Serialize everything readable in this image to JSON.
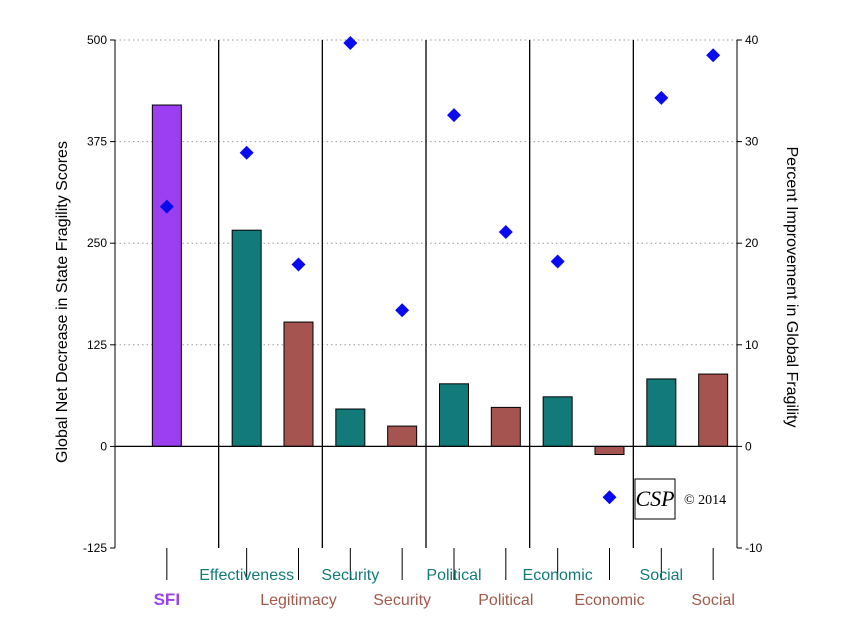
{
  "chart_data": {
    "type": "bar",
    "ylabel": "Global Net Decrease in State Fragility Scores",
    "y2label": "Percent Improvement in Global Fragility",
    "ylim": [
      -125,
      500
    ],
    "y2lim": [
      -10,
      40
    ],
    "yticks": [
      500,
      375,
      250,
      125,
      0,
      -125
    ],
    "y2ticks": [
      40,
      30,
      20,
      10,
      0,
      -10
    ],
    "grid": "horizontal dotted at major ticks",
    "categories": [
      "SFI",
      "Effectiveness",
      "Legitimacy",
      "Effectiveness",
      "Legitimacy",
      "Effectiveness",
      "Legitimacy",
      "Effectiveness",
      "Legitimacy",
      "Effectiveness",
      "Legitimacy"
    ],
    "groups": [
      {
        "label": "SFI",
        "bars": [
          {
            "label": "SFI",
            "value": 420,
            "pct": 23.6,
            "color": "#9b3ff0"
          }
        ]
      },
      {
        "label": "",
        "bars": [
          {
            "label": "Effectiveness",
            "value": 266,
            "pct": 28.9,
            "color": "#137a7a"
          },
          {
            "label": "Legitimacy",
            "value": 153,
            "pct": 17.9,
            "color": "#a6544f"
          }
        ]
      },
      {
        "label": "",
        "bars": [
          {
            "label": "Security",
            "value": 46,
            "pct": 39.7,
            "color": "#137a7a"
          },
          {
            "label": "Security",
            "value": 25,
            "pct": 13.4,
            "color": "#a6544f"
          }
        ]
      },
      {
        "label": "",
        "bars": [
          {
            "label": "Political",
            "value": 77,
            "pct": 32.6,
            "color": "#137a7a"
          },
          {
            "label": "Political",
            "value": 48,
            "pct": 21.1,
            "color": "#a6544f"
          }
        ]
      },
      {
        "label": "",
        "bars": [
          {
            "label": "Economic",
            "value": 61,
            "pct": 18.2,
            "color": "#137a7a"
          },
          {
            "label": "Economic",
            "value": -10,
            "pct": -5.0,
            "color": "#a6544f"
          }
        ]
      },
      {
        "label": "",
        "bars": [
          {
            "label": "Social",
            "value": 83,
            "pct": 34.3,
            "color": "#137a7a"
          },
          {
            "label": "Social",
            "value": 89,
            "pct": 38.5,
            "color": "#a6544f"
          }
        ]
      }
    ],
    "marker_color": "#0a0af0",
    "credit": "© 2014",
    "logo_text": "CSP"
  }
}
